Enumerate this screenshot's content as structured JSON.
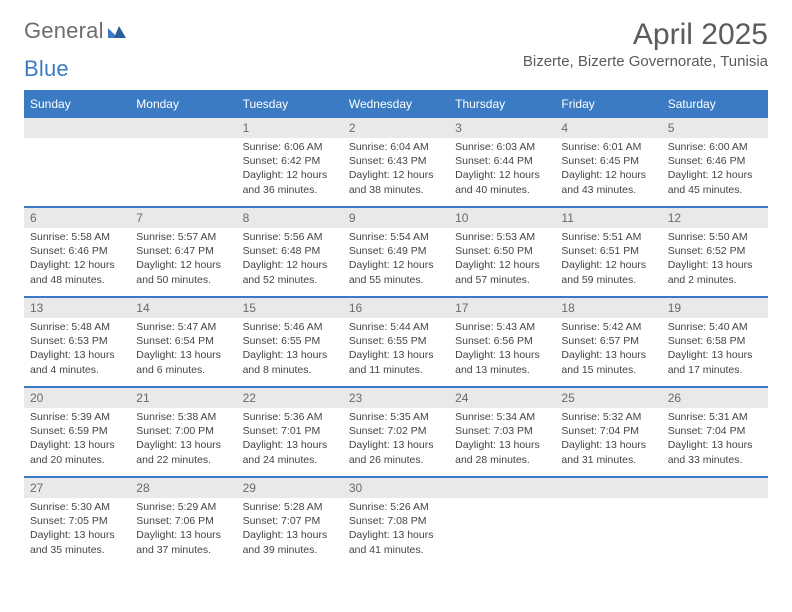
{
  "brand": {
    "part1": "General",
    "part2": "Blue"
  },
  "title": "April 2025",
  "location": "Bizerte, Bizerte Governorate, Tunisia",
  "colors": {
    "header_bg": "#3b7bc3",
    "header_text": "#ffffff",
    "daynum_bg": "#e9e9e9",
    "daynum_text": "#6a6a6a",
    "body_text": "#444444",
    "rule": "#3b7bc3",
    "logo_gray": "#6d6d6d",
    "logo_blue": "#3b7bc3"
  },
  "day_names": [
    "Sunday",
    "Monday",
    "Tuesday",
    "Wednesday",
    "Thursday",
    "Friday",
    "Saturday"
  ],
  "weeks": [
    [
      null,
      null,
      {
        "n": "1",
        "sunrise": "Sunrise: 6:06 AM",
        "sunset": "Sunset: 6:42 PM",
        "dl1": "Daylight: 12 hours",
        "dl2": "and 36 minutes."
      },
      {
        "n": "2",
        "sunrise": "Sunrise: 6:04 AM",
        "sunset": "Sunset: 6:43 PM",
        "dl1": "Daylight: 12 hours",
        "dl2": "and 38 minutes."
      },
      {
        "n": "3",
        "sunrise": "Sunrise: 6:03 AM",
        "sunset": "Sunset: 6:44 PM",
        "dl1": "Daylight: 12 hours",
        "dl2": "and 40 minutes."
      },
      {
        "n": "4",
        "sunrise": "Sunrise: 6:01 AM",
        "sunset": "Sunset: 6:45 PM",
        "dl1": "Daylight: 12 hours",
        "dl2": "and 43 minutes."
      },
      {
        "n": "5",
        "sunrise": "Sunrise: 6:00 AM",
        "sunset": "Sunset: 6:46 PM",
        "dl1": "Daylight: 12 hours",
        "dl2": "and 45 minutes."
      }
    ],
    [
      {
        "n": "6",
        "sunrise": "Sunrise: 5:58 AM",
        "sunset": "Sunset: 6:46 PM",
        "dl1": "Daylight: 12 hours",
        "dl2": "and 48 minutes."
      },
      {
        "n": "7",
        "sunrise": "Sunrise: 5:57 AM",
        "sunset": "Sunset: 6:47 PM",
        "dl1": "Daylight: 12 hours",
        "dl2": "and 50 minutes."
      },
      {
        "n": "8",
        "sunrise": "Sunrise: 5:56 AM",
        "sunset": "Sunset: 6:48 PM",
        "dl1": "Daylight: 12 hours",
        "dl2": "and 52 minutes."
      },
      {
        "n": "9",
        "sunrise": "Sunrise: 5:54 AM",
        "sunset": "Sunset: 6:49 PM",
        "dl1": "Daylight: 12 hours",
        "dl2": "and 55 minutes."
      },
      {
        "n": "10",
        "sunrise": "Sunrise: 5:53 AM",
        "sunset": "Sunset: 6:50 PM",
        "dl1": "Daylight: 12 hours",
        "dl2": "and 57 minutes."
      },
      {
        "n": "11",
        "sunrise": "Sunrise: 5:51 AM",
        "sunset": "Sunset: 6:51 PM",
        "dl1": "Daylight: 12 hours",
        "dl2": "and 59 minutes."
      },
      {
        "n": "12",
        "sunrise": "Sunrise: 5:50 AM",
        "sunset": "Sunset: 6:52 PM",
        "dl1": "Daylight: 13 hours",
        "dl2": "and 2 minutes."
      }
    ],
    [
      {
        "n": "13",
        "sunrise": "Sunrise: 5:48 AM",
        "sunset": "Sunset: 6:53 PM",
        "dl1": "Daylight: 13 hours",
        "dl2": "and 4 minutes."
      },
      {
        "n": "14",
        "sunrise": "Sunrise: 5:47 AM",
        "sunset": "Sunset: 6:54 PM",
        "dl1": "Daylight: 13 hours",
        "dl2": "and 6 minutes."
      },
      {
        "n": "15",
        "sunrise": "Sunrise: 5:46 AM",
        "sunset": "Sunset: 6:55 PM",
        "dl1": "Daylight: 13 hours",
        "dl2": "and 8 minutes."
      },
      {
        "n": "16",
        "sunrise": "Sunrise: 5:44 AM",
        "sunset": "Sunset: 6:55 PM",
        "dl1": "Daylight: 13 hours",
        "dl2": "and 11 minutes."
      },
      {
        "n": "17",
        "sunrise": "Sunrise: 5:43 AM",
        "sunset": "Sunset: 6:56 PM",
        "dl1": "Daylight: 13 hours",
        "dl2": "and 13 minutes."
      },
      {
        "n": "18",
        "sunrise": "Sunrise: 5:42 AM",
        "sunset": "Sunset: 6:57 PM",
        "dl1": "Daylight: 13 hours",
        "dl2": "and 15 minutes."
      },
      {
        "n": "19",
        "sunrise": "Sunrise: 5:40 AM",
        "sunset": "Sunset: 6:58 PM",
        "dl1": "Daylight: 13 hours",
        "dl2": "and 17 minutes."
      }
    ],
    [
      {
        "n": "20",
        "sunrise": "Sunrise: 5:39 AM",
        "sunset": "Sunset: 6:59 PM",
        "dl1": "Daylight: 13 hours",
        "dl2": "and 20 minutes."
      },
      {
        "n": "21",
        "sunrise": "Sunrise: 5:38 AM",
        "sunset": "Sunset: 7:00 PM",
        "dl1": "Daylight: 13 hours",
        "dl2": "and 22 minutes."
      },
      {
        "n": "22",
        "sunrise": "Sunrise: 5:36 AM",
        "sunset": "Sunset: 7:01 PM",
        "dl1": "Daylight: 13 hours",
        "dl2": "and 24 minutes."
      },
      {
        "n": "23",
        "sunrise": "Sunrise: 5:35 AM",
        "sunset": "Sunset: 7:02 PM",
        "dl1": "Daylight: 13 hours",
        "dl2": "and 26 minutes."
      },
      {
        "n": "24",
        "sunrise": "Sunrise: 5:34 AM",
        "sunset": "Sunset: 7:03 PM",
        "dl1": "Daylight: 13 hours",
        "dl2": "and 28 minutes."
      },
      {
        "n": "25",
        "sunrise": "Sunrise: 5:32 AM",
        "sunset": "Sunset: 7:04 PM",
        "dl1": "Daylight: 13 hours",
        "dl2": "and 31 minutes."
      },
      {
        "n": "26",
        "sunrise": "Sunrise: 5:31 AM",
        "sunset": "Sunset: 7:04 PM",
        "dl1": "Daylight: 13 hours",
        "dl2": "and 33 minutes."
      }
    ],
    [
      {
        "n": "27",
        "sunrise": "Sunrise: 5:30 AM",
        "sunset": "Sunset: 7:05 PM",
        "dl1": "Daylight: 13 hours",
        "dl2": "and 35 minutes."
      },
      {
        "n": "28",
        "sunrise": "Sunrise: 5:29 AM",
        "sunset": "Sunset: 7:06 PM",
        "dl1": "Daylight: 13 hours",
        "dl2": "and 37 minutes."
      },
      {
        "n": "29",
        "sunrise": "Sunrise: 5:28 AM",
        "sunset": "Sunset: 7:07 PM",
        "dl1": "Daylight: 13 hours",
        "dl2": "and 39 minutes."
      },
      {
        "n": "30",
        "sunrise": "Sunrise: 5:26 AM",
        "sunset": "Sunset: 7:08 PM",
        "dl1": "Daylight: 13 hours",
        "dl2": "and 41 minutes."
      },
      null,
      null,
      null
    ]
  ]
}
